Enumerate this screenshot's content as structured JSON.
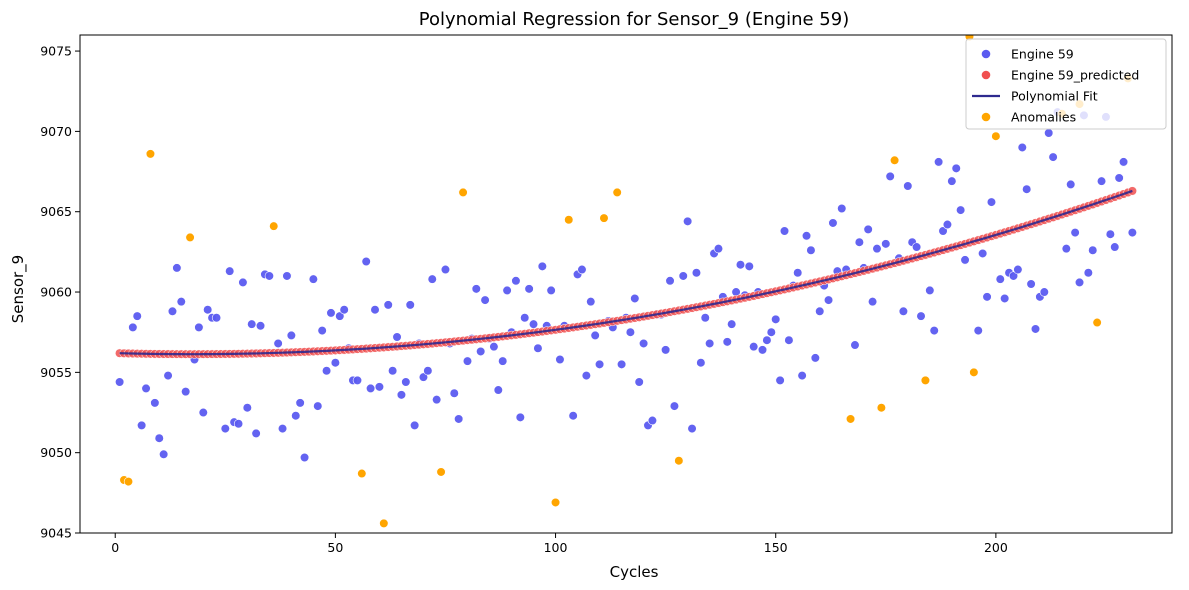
{
  "chart_data": {
    "type": "scatter",
    "title": "Polynomial Regression for Sensor_9 (Engine 59)",
    "xlabel": "Cycles",
    "ylabel": "Sensor_9",
    "xlim": [
      -8,
      240
    ],
    "ylim": [
      9045,
      9076
    ],
    "xticks": [
      0,
      50,
      100,
      150,
      200
    ],
    "yticks": [
      9045,
      9050,
      9055,
      9060,
      9065,
      9070,
      9075
    ],
    "grid": false,
    "legend_position": "top-right",
    "colors": {
      "observed": "#5b5bf0",
      "predicted": "#f05050",
      "fit": "#2e2a8f",
      "anomalies": "#ffa500"
    },
    "legend": [
      {
        "label": "Engine 59",
        "kind": "dot",
        "color": "#5b5bf0"
      },
      {
        "label": "Engine 59_predicted",
        "kind": "dot",
        "color": "#f05050"
      },
      {
        "label": "Polynomial Fit",
        "kind": "line",
        "color": "#2e2a8f"
      },
      {
        "label": "Anomalies",
        "kind": "dot",
        "color": "#ffa500"
      }
    ],
    "fit_model": {
      "x_start": 1,
      "x_end": 231,
      "coefficients": [
        9056.2,
        -0.0078,
        0.0002229
      ]
    },
    "series": [
      {
        "name": "Engine 59",
        "points": [
          [
            1,
            9054.4
          ],
          [
            4,
            9057.8
          ],
          [
            5,
            9058.5
          ],
          [
            6,
            9051.7
          ],
          [
            7,
            9054.0
          ],
          [
            9,
            9053.1
          ],
          [
            10,
            9050.9
          ],
          [
            11,
            9049.9
          ],
          [
            12,
            9054.8
          ],
          [
            13,
            9058.8
          ],
          [
            14,
            9061.5
          ],
          [
            15,
            9059.4
          ],
          [
            16,
            9053.8
          ],
          [
            18,
            9055.8
          ],
          [
            19,
            9057.8
          ],
          [
            20,
            9052.5
          ],
          [
            21,
            9058.9
          ],
          [
            22,
            9058.4
          ],
          [
            23,
            9058.4
          ],
          [
            25,
            9051.5
          ],
          [
            26,
            9061.3
          ],
          [
            27,
            9051.9
          ],
          [
            28,
            9051.8
          ],
          [
            29,
            9060.6
          ],
          [
            30,
            9052.8
          ],
          [
            31,
            9058.0
          ],
          [
            32,
            9051.2
          ],
          [
            33,
            9057.9
          ],
          [
            34,
            9061.1
          ],
          [
            35,
            9061.0
          ],
          [
            37,
            9056.8
          ],
          [
            38,
            9051.5
          ],
          [
            39,
            9061.0
          ],
          [
            40,
            9057.3
          ],
          [
            41,
            9052.3
          ],
          [
            42,
            9053.1
          ],
          [
            43,
            9049.7
          ],
          [
            45,
            9060.8
          ],
          [
            46,
            9052.9
          ],
          [
            47,
            9057.6
          ],
          [
            48,
            9055.1
          ],
          [
            49,
            9058.7
          ],
          [
            50,
            9055.6
          ],
          [
            51,
            9058.5
          ],
          [
            52,
            9058.9
          ],
          [
            53,
            9056.5
          ],
          [
            54,
            9054.5
          ],
          [
            55,
            9054.5
          ],
          [
            57,
            9061.9
          ],
          [
            58,
            9054.0
          ],
          [
            59,
            9058.9
          ],
          [
            60,
            9054.1
          ],
          [
            62,
            9059.2
          ],
          [
            63,
            9055.1
          ],
          [
            64,
            9057.2
          ],
          [
            65,
            9053.6
          ],
          [
            66,
            9054.4
          ],
          [
            67,
            9059.2
          ],
          [
            68,
            9051.7
          ],
          [
            69,
            9056.8
          ],
          [
            70,
            9054.7
          ],
          [
            71,
            9055.1
          ],
          [
            72,
            9060.8
          ],
          [
            73,
            9053.3
          ],
          [
            75,
            9061.4
          ],
          [
            76,
            9056.8
          ],
          [
            77,
            9053.7
          ],
          [
            78,
            9052.1
          ],
          [
            80,
            9055.7
          ],
          [
            81,
            9057.1
          ],
          [
            82,
            9060.2
          ],
          [
            83,
            9056.3
          ],
          [
            84,
            9059.5
          ],
          [
            85,
            9057.1
          ],
          [
            86,
            9056.6
          ],
          [
            87,
            9053.9
          ],
          [
            88,
            9055.7
          ],
          [
            89,
            9060.1
          ],
          [
            90,
            9057.5
          ],
          [
            91,
            9060.7
          ],
          [
            92,
            9052.2
          ],
          [
            93,
            9058.4
          ],
          [
            94,
            9060.2
          ],
          [
            95,
            9058.0
          ],
          [
            96,
            9056.5
          ],
          [
            97,
            9061.6
          ],
          [
            98,
            9057.9
          ],
          [
            99,
            9060.1
          ],
          [
            101,
            9055.8
          ],
          [
            102,
            9057.9
          ],
          [
            104,
            9052.3
          ],
          [
            105,
            9061.1
          ],
          [
            106,
            9061.4
          ],
          [
            107,
            9054.8
          ],
          [
            108,
            9059.4
          ],
          [
            109,
            9057.3
          ],
          [
            110,
            9055.5
          ],
          [
            112,
            9058.2
          ],
          [
            113,
            9057.8
          ],
          [
            115,
            9055.5
          ],
          [
            116,
            9058.4
          ],
          [
            117,
            9057.5
          ],
          [
            118,
            9059.6
          ],
          [
            119,
            9054.4
          ],
          [
            120,
            9056.8
          ],
          [
            121,
            9051.7
          ],
          [
            122,
            9052.0
          ],
          [
            123,
            9058.6
          ],
          [
            124,
            9058.6
          ],
          [
            125,
            9056.4
          ],
          [
            126,
            9060.7
          ],
          [
            127,
            9052.9
          ],
          [
            129,
            9061.0
          ],
          [
            130,
            9064.4
          ],
          [
            131,
            9051.5
          ],
          [
            132,
            9061.2
          ],
          [
            133,
            9055.6
          ],
          [
            134,
            9058.4
          ],
          [
            135,
            9056.8
          ],
          [
            136,
            9062.4
          ],
          [
            137,
            9062.7
          ],
          [
            138,
            9059.7
          ],
          [
            139,
            9056.9
          ],
          [
            140,
            9058.0
          ],
          [
            141,
            9060.0
          ],
          [
            142,
            9061.7
          ],
          [
            143,
            9059.8
          ],
          [
            144,
            9061.6
          ],
          [
            145,
            9056.6
          ],
          [
            146,
            9060.0
          ],
          [
            147,
            9056.4
          ],
          [
            148,
            9057.0
          ],
          [
            149,
            9057.5
          ],
          [
            150,
            9058.3
          ],
          [
            151,
            9054.5
          ],
          [
            152,
            9063.8
          ],
          [
            153,
            9057.0
          ],
          [
            154,
            9060.4
          ],
          [
            155,
            9061.2
          ],
          [
            156,
            9054.8
          ],
          [
            157,
            9063.5
          ],
          [
            158,
            9062.6
          ],
          [
            159,
            9055.9
          ],
          [
            160,
            9058.8
          ],
          [
            161,
            9060.4
          ],
          [
            162,
            9059.5
          ],
          [
            163,
            9064.3
          ],
          [
            164,
            9061.3
          ],
          [
            165,
            9065.2
          ],
          [
            166,
            9061.4
          ],
          [
            168,
            9056.7
          ],
          [
            169,
            9063.1
          ],
          [
            170,
            9061.5
          ],
          [
            171,
            9063.9
          ],
          [
            172,
            9059.4
          ],
          [
            173,
            9062.7
          ],
          [
            175,
            9063.0
          ],
          [
            176,
            9067.2
          ],
          [
            178,
            9062.1
          ],
          [
            179,
            9058.8
          ],
          [
            180,
            9066.6
          ],
          [
            181,
            9063.1
          ],
          [
            182,
            9062.8
          ],
          [
            183,
            9058.5
          ],
          [
            185,
            9060.1
          ],
          [
            186,
            9057.6
          ],
          [
            187,
            9068.1
          ],
          [
            188,
            9063.8
          ],
          [
            189,
            9064.2
          ],
          [
            190,
            9066.9
          ],
          [
            191,
            9067.7
          ],
          [
            192,
            9065.1
          ],
          [
            193,
            9062.0
          ],
          [
            196,
            9057.6
          ],
          [
            197,
            9062.4
          ],
          [
            198,
            9059.7
          ],
          [
            199,
            9065.6
          ],
          [
            201,
            9060.8
          ],
          [
            202,
            9059.6
          ],
          [
            203,
            9061.2
          ],
          [
            204,
            9061.0
          ],
          [
            205,
            9061.4
          ],
          [
            206,
            9069.0
          ],
          [
            207,
            9066.4
          ],
          [
            208,
            9060.5
          ],
          [
            209,
            9057.7
          ],
          [
            210,
            9059.7
          ],
          [
            211,
            9060.0
          ],
          [
            212,
            9069.9
          ],
          [
            213,
            9068.4
          ],
          [
            214,
            9071.2
          ],
          [
            216,
            9062.7
          ],
          [
            217,
            9066.7
          ],
          [
            218,
            9063.7
          ],
          [
            219,
            9060.6
          ],
          [
            220,
            9071.0
          ],
          [
            221,
            9061.2
          ],
          [
            222,
            9062.6
          ],
          [
            224,
            9066.9
          ],
          [
            225,
            9070.9
          ],
          [
            226,
            9063.6
          ],
          [
            227,
            9062.8
          ],
          [
            228,
            9067.1
          ],
          [
            229,
            9068.1
          ],
          [
            231,
            9063.7
          ]
        ]
      },
      {
        "name": "Engine 59_predicted",
        "note_source": "fit_model",
        "points": []
      },
      {
        "name": "Anomalies",
        "points": [
          [
            2,
            9048.3
          ],
          [
            3,
            9048.2
          ],
          [
            8,
            9068.6
          ],
          [
            17,
            9063.4
          ],
          [
            36,
            9064.1
          ],
          [
            56,
            9048.7
          ],
          [
            61,
            9045.6
          ],
          [
            74,
            9048.8
          ],
          [
            79,
            9066.2
          ],
          [
            100,
            9046.9
          ],
          [
            103,
            9064.5
          ],
          [
            111,
            9064.6
          ],
          [
            114,
            9066.2
          ],
          [
            128,
            9049.5
          ],
          [
            167,
            9052.1
          ],
          [
            174,
            9052.8
          ],
          [
            177,
            9068.2
          ],
          [
            184,
            9054.5
          ],
          [
            194,
            9075.9
          ],
          [
            195,
            9055.0
          ],
          [
            200,
            9069.7
          ],
          [
            215,
            9071.1
          ],
          [
            219,
            9071.7
          ],
          [
            223,
            9058.1
          ],
          [
            230,
            9073.3
          ]
        ]
      }
    ]
  }
}
